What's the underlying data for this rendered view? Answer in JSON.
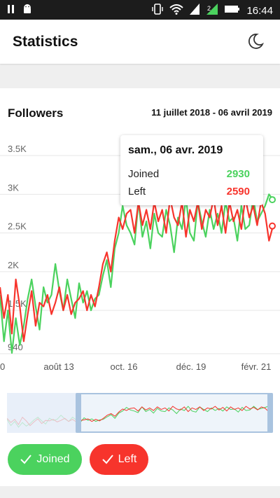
{
  "status_bar": {
    "time": "16:44",
    "icons": [
      "pause-icon",
      "android-icon",
      "vibrate-icon",
      "wifi-icon",
      "signal-icon",
      "signal-2-icon",
      "battery-icon"
    ]
  },
  "app": {
    "title": "Statistics",
    "theme_icon": "moon-icon"
  },
  "card": {
    "title": "Followers",
    "range": "11 juillet 2018 - 06 avril 2019"
  },
  "tooltip": {
    "date": "sam., 06 avr. 2019",
    "joined_label": "Joined",
    "joined_value": "2930",
    "left_label": "Left",
    "left_value": "2590"
  },
  "colors": {
    "joined": "#4bd25e",
    "left": "#f7342c",
    "accent": "#4b8bd8"
  },
  "buttons": {
    "joined": "Joined",
    "left": "Left"
  },
  "chart_data": {
    "type": "line",
    "title": "Followers",
    "x_tick_labels": [
      "0",
      "août 13",
      "oct. 16",
      "déc. 19",
      "févr. 21"
    ],
    "y_tick_labels": [
      "940",
      "1.5K",
      "2K",
      "2.5K",
      "3K",
      "3.5K"
    ],
    "y_ticks": [
      940,
      1500,
      2000,
      2500,
      3000,
      3500
    ],
    "ylim": [
      940,
      3700
    ],
    "x_range": [
      "2018-07-11",
      "2019-04-06"
    ],
    "series": [
      {
        "name": "Joined",
        "color": "#4bd25e",
        "values": [
          1700,
          1100,
          1500,
          950,
          1400,
          1050,
          1300,
          1650,
          1900,
          1550,
          1250,
          1800,
          1600,
          1700,
          2100,
          1750,
          1500,
          1900,
          1650,
          1400,
          1850,
          1600,
          1750,
          1500,
          1650,
          1700,
          1950,
          2150,
          1800,
          2300,
          2500,
          2850,
          2600,
          2500,
          2350,
          2900,
          2450,
          2650,
          2300,
          2750,
          2500,
          2450,
          2800,
          2600,
          2250,
          2700,
          2550,
          2950,
          2500,
          2400,
          2900,
          2650,
          2450,
          2800,
          2550,
          2750,
          2500,
          2900,
          2650,
          2700,
          2400,
          2850,
          2550,
          2600,
          2950,
          2650,
          2750,
          2850,
          3000,
          2930
        ]
      },
      {
        "name": "Left",
        "color": "#f7342c",
        "values": [
          1800,
          1400,
          1700,
          1200,
          1900,
          1550,
          1100,
          1450,
          1750,
          1300,
          1600,
          1550,
          1700,
          1450,
          1600,
          1800,
          1500,
          1700,
          1450,
          1600,
          1650,
          1750,
          1500,
          1700,
          1550,
          1800,
          2100,
          2250,
          2000,
          2400,
          2700,
          2550,
          2750,
          2800,
          2500,
          2900,
          2600,
          2800,
          2550,
          2900,
          2650,
          2800,
          2500,
          2950,
          2700,
          2600,
          2900,
          2450,
          2800,
          2650,
          2900,
          2550,
          2800,
          2700,
          2950,
          2600,
          2850,
          2500,
          2900,
          2650,
          2800,
          2550,
          2950,
          2700,
          2850,
          2600,
          2900,
          2750,
          2400,
          2590
        ]
      }
    ]
  }
}
